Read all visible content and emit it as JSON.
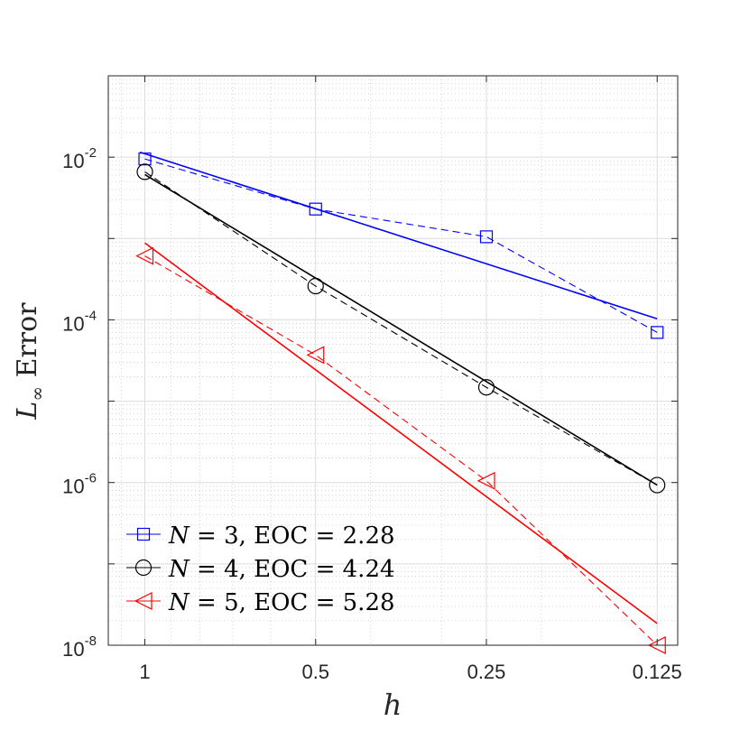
{
  "chart_data": {
    "type": "line",
    "xscale": "log",
    "yscale": "log",
    "xaxis_reversed": true,
    "x_ticks": [
      1,
      0.5,
      0.25,
      0.125
    ],
    "x_tick_labels": [
      "1",
      "0.5",
      "0.25",
      "0.125"
    ],
    "xlim": [
      1.16,
      0.115
    ],
    "ylim": [
      1e-08,
      0.1
    ],
    "y_ticks": [
      1e-08,
      1e-06,
      0.0001,
      0.01
    ],
    "y_tick_labels": [
      {
        "base": "10",
        "exp": "-8"
      },
      {
        "base": "10",
        "exp": "-6"
      },
      {
        "base": "10",
        "exp": "-4"
      },
      {
        "base": "10",
        "exp": "-2"
      }
    ],
    "xlabel": "h",
    "ylabel": {
      "main": "L",
      "sub": "∞",
      "rest": " Error"
    },
    "grid": true,
    "minor_grid": true,
    "legend_position": "bottom-left",
    "series": [
      {
        "name": "N = 3, EOC = 2.28",
        "legend": {
          "var": "N",
          "num": "3",
          "eoc": "2.28"
        },
        "color": "#0000ff",
        "marker": "square",
        "x": [
          1,
          0.5,
          0.25,
          0.125
        ],
        "y": [
          0.0095,
          0.0023,
          0.00105,
          7e-05
        ],
        "fit": {
          "x": [
            1.02,
            0.125
          ],
          "y": [
            0.0115,
            0.000103
          ]
        }
      },
      {
        "name": "N = 4, EOC = 4.24",
        "legend": {
          "var": "N",
          "num": "4",
          "eoc": "4.24"
        },
        "color": "#000000",
        "marker": "circle",
        "x": [
          1,
          0.5,
          0.25,
          0.125
        ],
        "y": [
          0.0066,
          0.00026,
          1.48e-05,
          9.3e-07
        ],
        "fit": {
          "x": [
            1.0,
            0.125
          ],
          "y": [
            0.0061,
            9.3e-07
          ]
        }
      },
      {
        "name": "N = 5, EOC = 5.28",
        "legend": {
          "var": "N",
          "num": "5",
          "eoc": "5.28"
        },
        "color": "#ff0000",
        "marker": "triangle-left",
        "x": [
          1,
          0.5,
          0.25,
          0.125
        ],
        "y": [
          0.00061,
          3.7e-05,
          1.05e-06,
          1e-08
        ],
        "fit": {
          "x": [
            1.0,
            0.125
          ],
          "y": [
            0.00088,
            1.85e-08
          ]
        }
      }
    ]
  }
}
